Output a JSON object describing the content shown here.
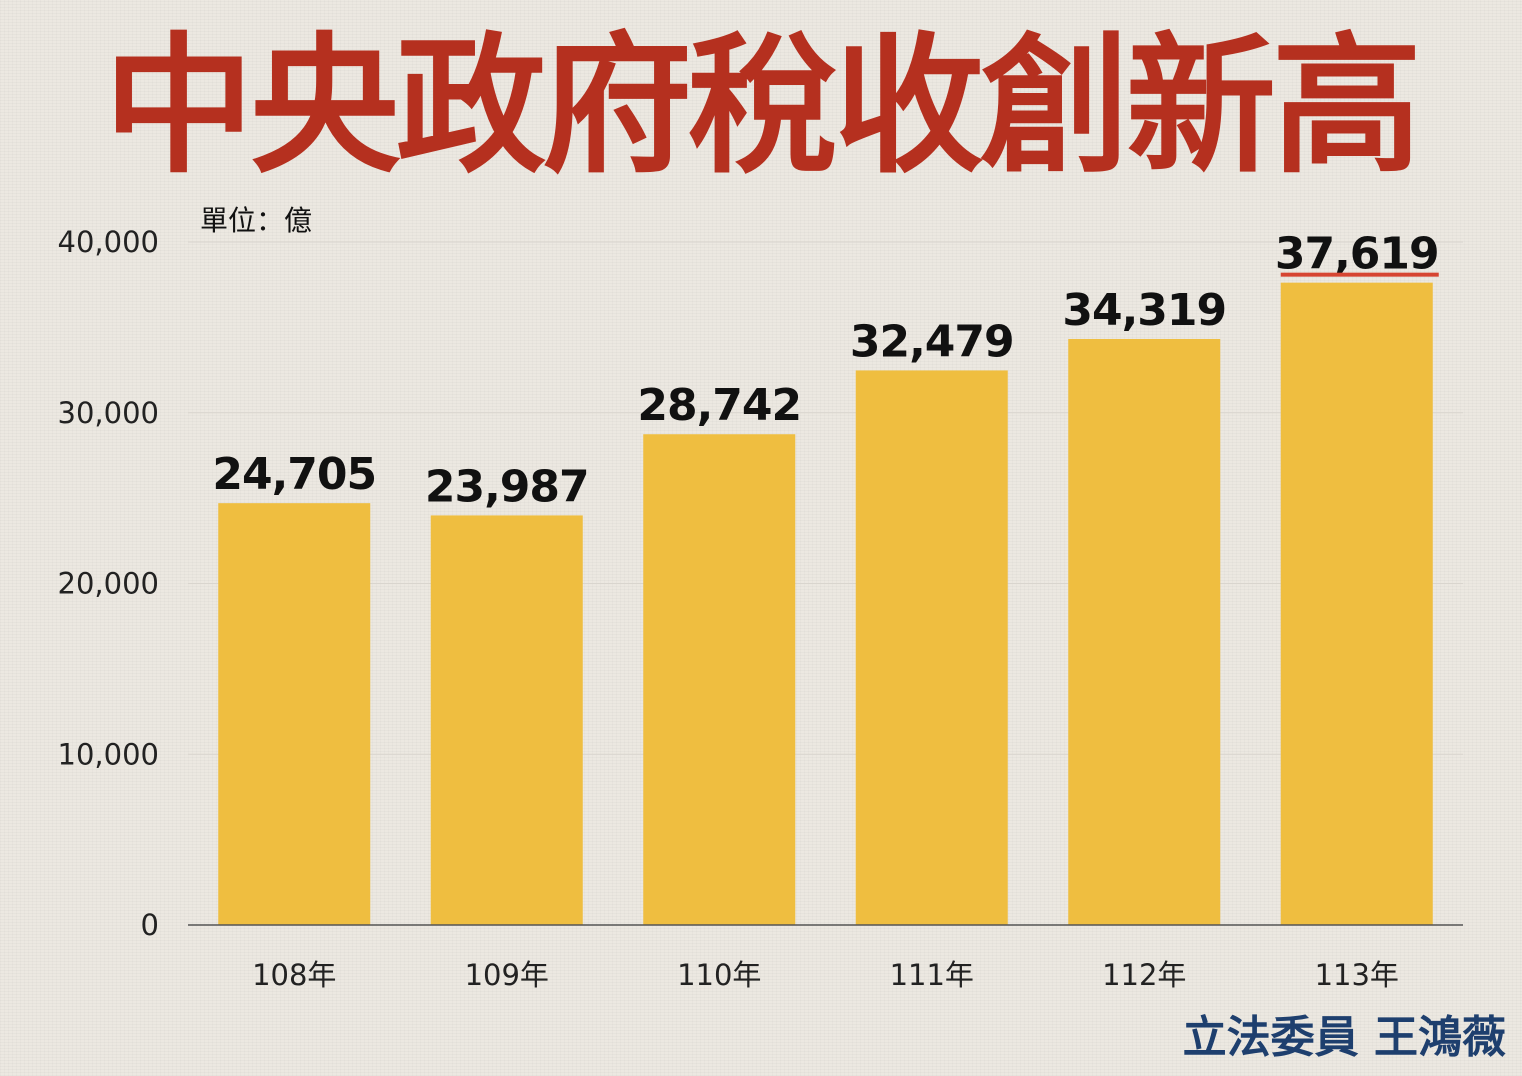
{
  "chart_data": {
    "type": "bar",
    "title": "中央政府稅收創新高",
    "unit_label": "單位：億",
    "categories": [
      "108年",
      "109年",
      "110年",
      "111年",
      "112年",
      "113年"
    ],
    "values": [
      24705,
      23987,
      28742,
      32479,
      34319,
      37619
    ],
    "value_labels": [
      "24,705",
      "23,987",
      "28,742",
      "32,479",
      "34,319",
      "37,619"
    ],
    "y_ticks": [
      0,
      10000,
      20000,
      30000,
      40000
    ],
    "y_tick_labels": [
      "0",
      "10,000",
      "20,000",
      "30,000",
      "40,000"
    ],
    "ylim": [
      0,
      40000
    ],
    "grid": true,
    "highlight_index": 5,
    "colors": {
      "bar": "#efbe40",
      "title": "#b5301f",
      "highlight_underline": "#d64532",
      "credit": "#1e3f6e"
    }
  },
  "credit": "立法委員 王鴻薇"
}
